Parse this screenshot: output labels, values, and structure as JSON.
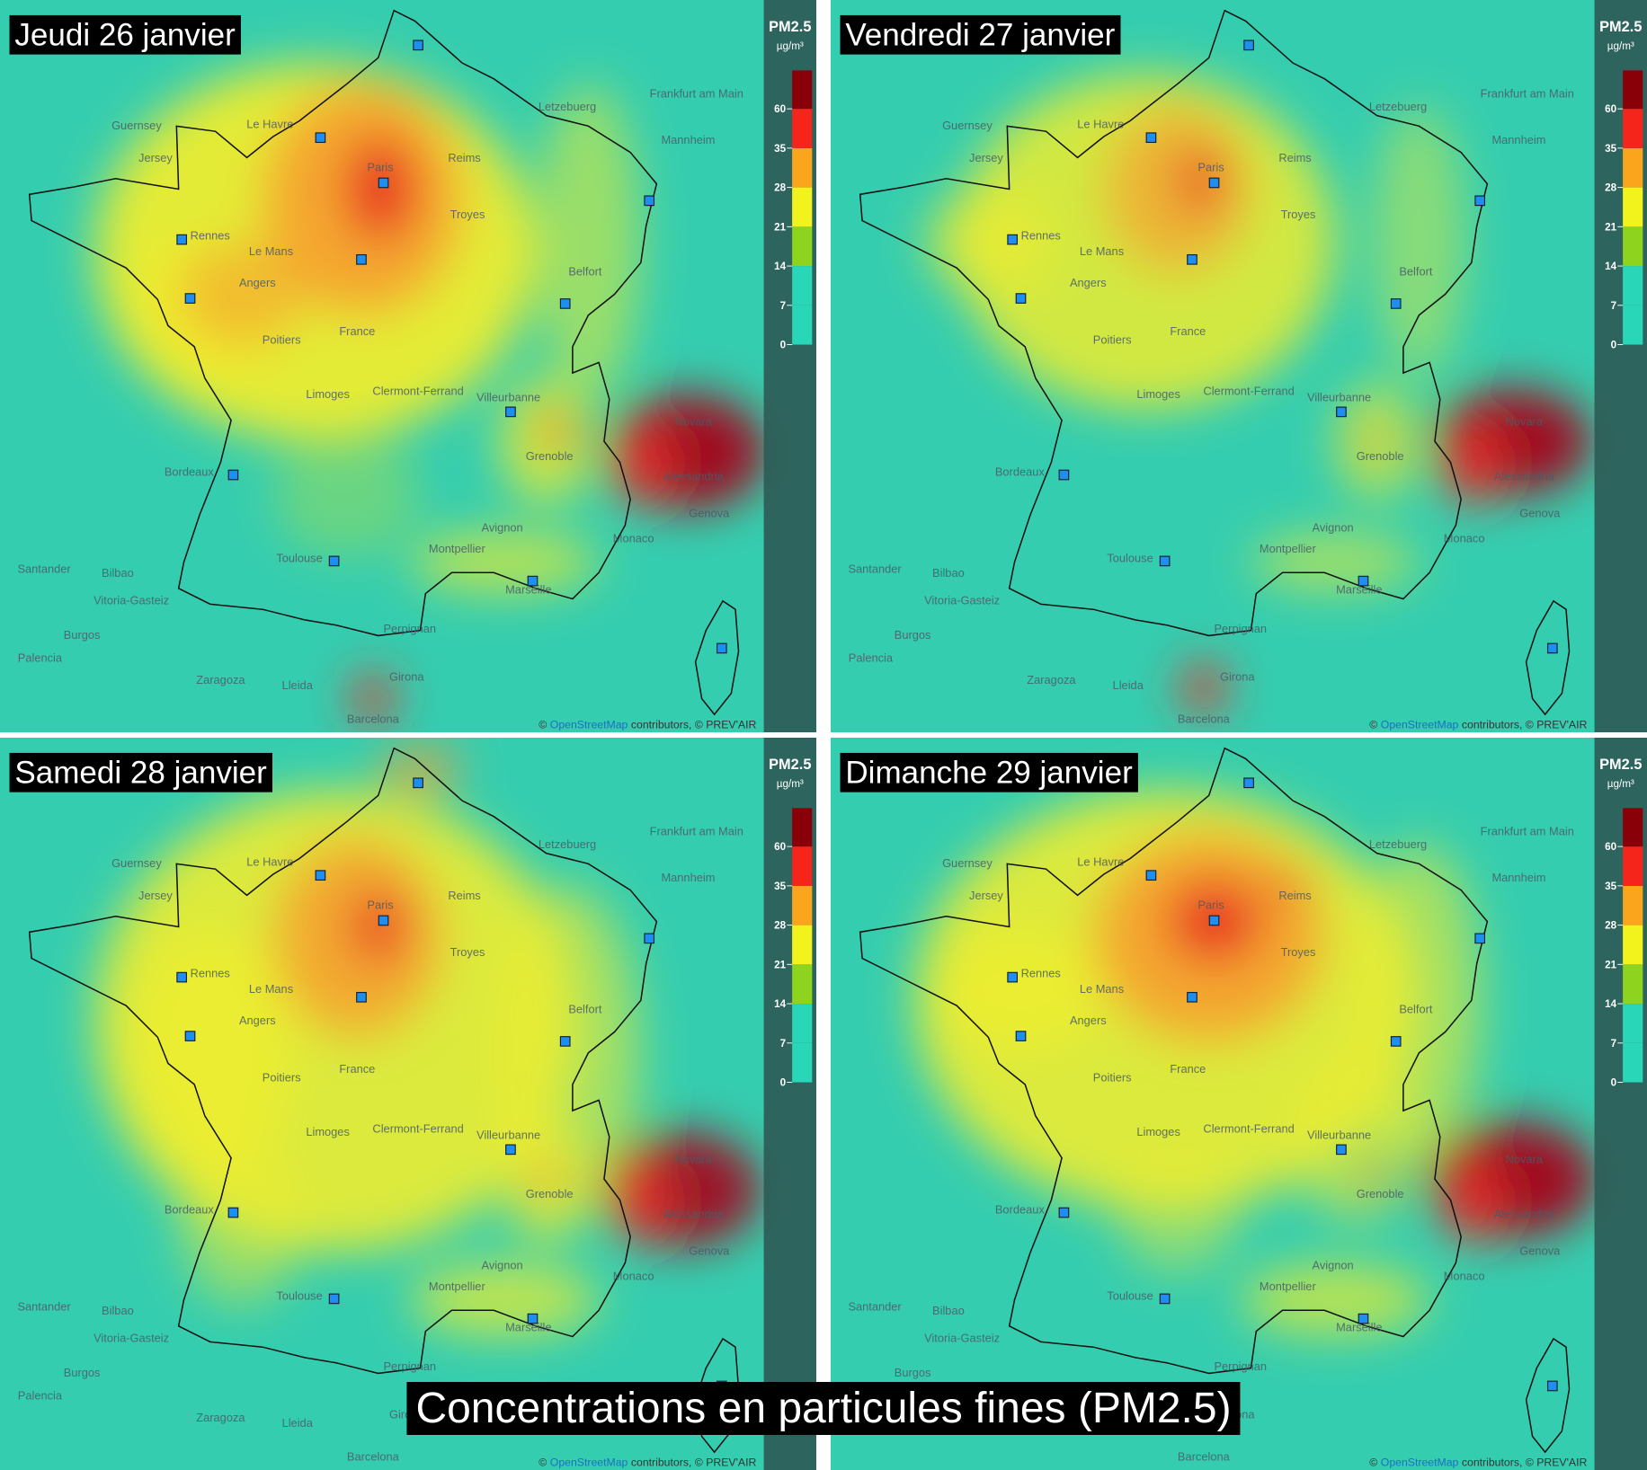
{
  "caption": "Concentrations en particules fines (PM2.5)",
  "panels": [
    {
      "title": "Jeudi 26 janvier"
    },
    {
      "title": "Vendredi 27 janvier"
    },
    {
      "title": "Samedi 28 janvier"
    },
    {
      "title": "Dimanche 29 janvier"
    }
  ],
  "legend": {
    "title": "PM2.5",
    "unit": "µg/m³",
    "ticks": [
      0,
      7,
      14,
      21,
      28,
      35,
      60
    ],
    "colors": [
      "#2ad6b8",
      "#2ad6b8",
      "#8ed41f",
      "#f2f21c",
      "#fba51c",
      "#f5251c",
      "#8a0008"
    ]
  },
  "places": [
    "Paris",
    "Rennes",
    "Le Mans",
    "Angers",
    "Poitiers",
    "France",
    "Limoges",
    "Clermont-Ferrand",
    "Villeurbanne",
    "Grenoble",
    "Montpellier",
    "Avignon",
    "Troyes",
    "Reims",
    "Belfort",
    "Genova",
    "Alessandria",
    "Novara",
    "Zaragoza",
    "Barcelona",
    "Vitoria-Gasteiz",
    "Santander",
    "Bilbao",
    "Burgos",
    "Palencia",
    "Letzebuerg",
    "Frankfurt am Main",
    "Mannheim",
    "Guernsey",
    "Jersey",
    "Le Havre",
    "Monaco",
    "Perpignan",
    "Girona",
    "Lleida",
    "Toulouse",
    "Marseille",
    "Bordeaux"
  ],
  "attribution": [
    "©",
    "OpenStreetMap",
    "contributors, © PREV'AIR"
  ]
}
